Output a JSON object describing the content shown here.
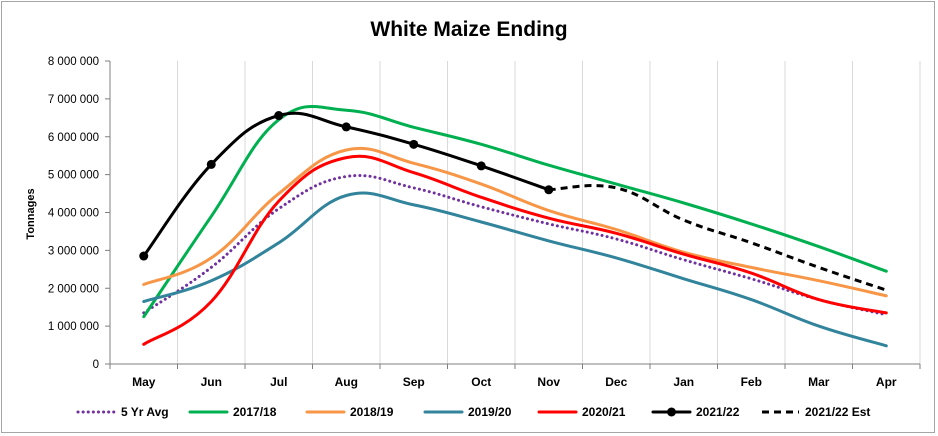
{
  "chart_data": {
    "type": "line",
    "title": "White Maize Ending",
    "xlabel": "",
    "ylabel": "Tonnages",
    "categories": [
      "May",
      "Jun",
      "Jul",
      "Aug",
      "Sep",
      "Oct",
      "Nov",
      "Dec",
      "Jan",
      "Feb",
      "Mar",
      "Apr"
    ],
    "y_tick_labels": [
      "0",
      "1 000 000",
      "2 000 000",
      "3 000 000",
      "4 000 000",
      "5 000 000",
      "6 000 000",
      "7 000 000",
      "8 000 000"
    ],
    "ylim": [
      0,
      8000000
    ],
    "grid": "vertical",
    "legend_position": "bottom",
    "series": [
      {
        "name": "5 Yr Avg",
        "color": "#7030a0",
        "style": "dotted",
        "markers": false,
        "values": [
          1350000,
          2550000,
          4100000,
          4950000,
          4650000,
          4150000,
          3700000,
          3300000,
          2750000,
          2250000,
          1700000,
          1300000
        ]
      },
      {
        "name": "2017/18",
        "color": "#00b050",
        "style": "solid",
        "markers": false,
        "values": [
          1250000,
          3900000,
          6450000,
          6700000,
          6250000,
          5800000,
          5250000,
          4750000,
          4250000,
          3700000,
          3100000,
          2450000
        ]
      },
      {
        "name": "2018/19",
        "color": "#f79646",
        "style": "solid",
        "markers": false,
        "values": [
          2100000,
          2800000,
          4500000,
          5650000,
          5300000,
          4750000,
          4050000,
          3550000,
          2950000,
          2550000,
          2200000,
          1800000
        ]
      },
      {
        "name": "2019/20",
        "color": "#31849b",
        "style": "solid",
        "markers": false,
        "values": [
          1650000,
          2200000,
          3200000,
          4450000,
          4200000,
          3750000,
          3250000,
          2800000,
          2250000,
          1700000,
          1000000,
          480000
        ]
      },
      {
        "name": "2020/21",
        "color": "#ff0000",
        "style": "solid",
        "markers": false,
        "values": [
          520000,
          1650000,
          4300000,
          5450000,
          5050000,
          4400000,
          3850000,
          3450000,
          2900000,
          2400000,
          1700000,
          1350000
        ]
      },
      {
        "name": "2021/22",
        "color": "#000000",
        "style": "solid",
        "markers": true,
        "values": [
          2850000,
          5270000,
          6560000,
          6260000,
          5800000,
          5230000,
          4600000,
          null,
          null,
          null,
          null,
          null
        ]
      },
      {
        "name": "2021/22 Est",
        "color": "#000000",
        "style": "dashed",
        "markers": false,
        "values": [
          null,
          null,
          null,
          null,
          null,
          null,
          4600000,
          4650000,
          3800000,
          3200000,
          2550000,
          1950000
        ]
      }
    ]
  }
}
